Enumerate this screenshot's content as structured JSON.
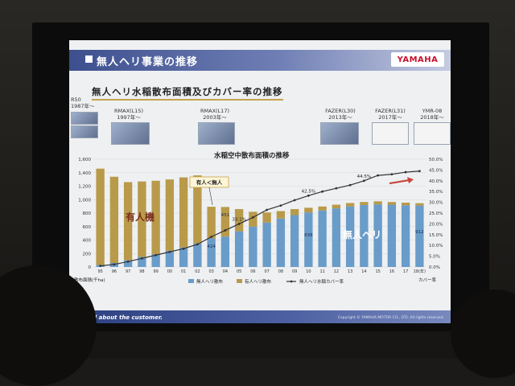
{
  "slide": {
    "header_title": "無人ヘリ事業の推移",
    "logo": "YAMAHA",
    "subtitle": "無人ヘリ水稲散布面積及びカバー率の推移",
    "chart_title": "水稲空中散布面積の推移",
    "footer_left": "It's all about the customer.",
    "footer_right": "Copyright © YAMAHA MOTOR CO., LTD. All rights reserved."
  },
  "models": [
    {
      "name": "R50",
      "year": "1987年〜"
    },
    {
      "name": "RMAX(L15)",
      "year": "1997年〜"
    },
    {
      "name": "RMAX(L17)",
      "year": "2003年〜"
    },
    {
      "name": "FAZER(L30)",
      "year": "2013年〜"
    },
    {
      "name": "FAZER(L31)",
      "year": "2017年〜"
    },
    {
      "name": "YMR-08",
      "year": "2018年〜"
    }
  ],
  "annotations": {
    "crossover": "有人＜無人",
    "manned": "有人機",
    "unmanned": "無人ヘリ",
    "value_451": "451",
    "value_424": "424",
    "value_838": "838",
    "value_912": "912"
  },
  "chart_data": {
    "type": "bar",
    "categories": [
      "95",
      "96",
      "97",
      "98",
      "99",
      "00",
      "01",
      "02",
      "03",
      "04",
      "05",
      "06",
      "07",
      "08",
      "09",
      "10",
      "11",
      "12",
      "13",
      "14",
      "15",
      "16",
      "17",
      "18(年)"
    ],
    "series": [
      {
        "name": "無人ヘリ散布",
        "type": "bar",
        "color": "#6a9cc9",
        "values": [
          30,
          60,
          100,
          150,
          190,
          240,
          290,
          350,
          424,
          451,
          530,
          600,
          660,
          720,
          770,
          810,
          838,
          870,
          900,
          920,
          930,
          925,
          915,
          912
        ]
      },
      {
        "name": "有人ヘリ散布",
        "type": "bar",
        "color": "#b89a4a",
        "values": [
          1430,
          1280,
          1160,
          1120,
          1090,
          1060,
          1040,
          1010,
          470,
          440,
          330,
          220,
          150,
          110,
          90,
          70,
          60,
          55,
          50,
          45,
          45,
          40,
          40,
          35
        ]
      },
      {
        "name": "無人ヘリ水稲カバー率",
        "type": "line",
        "color": "#333333",
        "values": [
          0.5,
          1.2,
          2.5,
          4.0,
          5.5,
          7.0,
          8.5,
          10.5,
          14.0,
          17.0,
          20.0,
          23.0,
          26.5,
          28.5,
          31.0,
          33.1,
          35.0,
          36.5,
          38.0,
          40.0,
          42.5,
          43.0,
          44.0,
          44.5
        ]
      }
    ],
    "point_labels": {
      "10": "33.1%",
      "15": "42.5%",
      "19": "44.5%"
    },
    "y_left": {
      "label": "散布面積(千ha)",
      "ticks": [
        "0",
        "200",
        "400",
        "600",
        "800",
        "1,000",
        "1,200",
        "1,400",
        "1,600"
      ],
      "ylim": [
        0,
        1600
      ]
    },
    "y_right": {
      "label": "カバー率",
      "ticks": [
        "0.0%",
        "5.0%",
        "10.0%",
        "15.0%",
        "20.0%",
        "25.0%",
        "30.0%",
        "35.0%",
        "40.0%",
        "45.0%",
        "50.0%"
      ],
      "ylim": [
        0,
        50
      ]
    },
    "legend_position": "bottom"
  }
}
